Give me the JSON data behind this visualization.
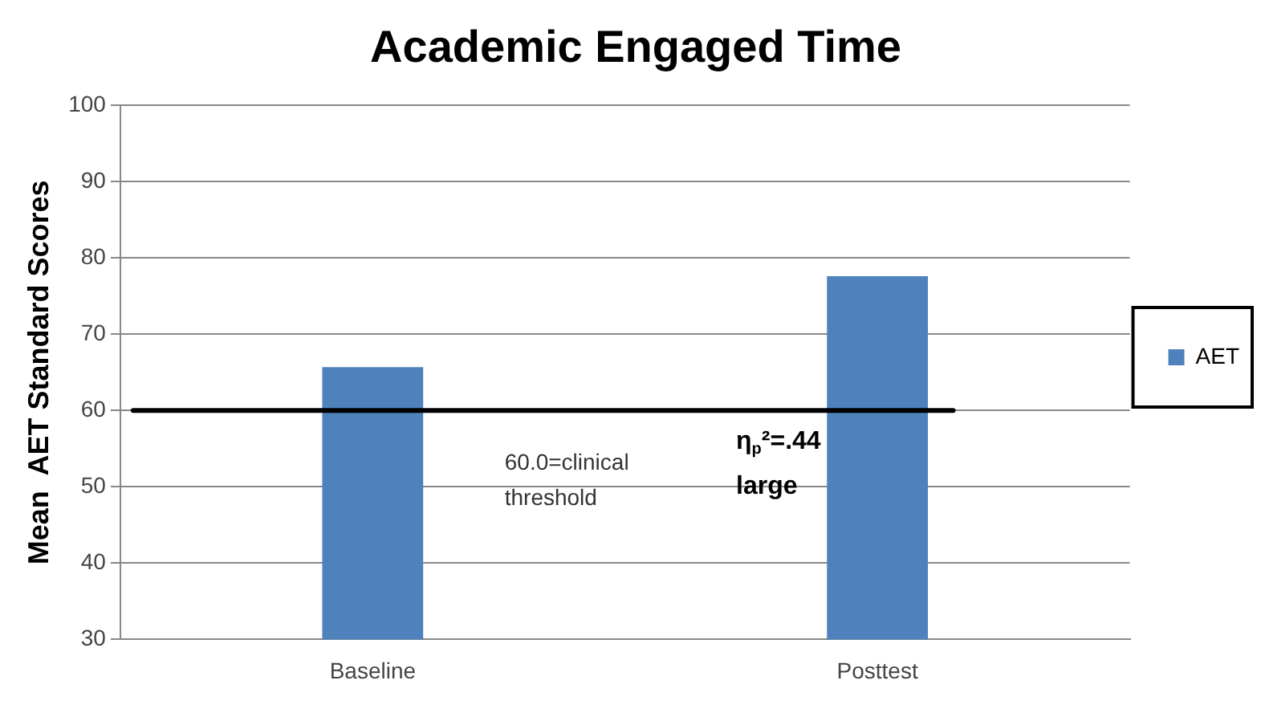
{
  "chart_data": {
    "type": "bar",
    "title": "Academic Engaged Time",
    "ylabel": "Mean  AET Standard Scores",
    "categories": [
      "Baseline",
      "Posttest"
    ],
    "series": [
      {
        "name": "AET",
        "color": "#4f81bd",
        "values": [
          65.7,
          77.6
        ]
      }
    ],
    "ylim": [
      30,
      100
    ],
    "yticks": [
      30,
      40,
      50,
      60,
      70,
      80,
      90,
      100
    ],
    "grid": "y",
    "legend": "right",
    "ref_lines": [
      {
        "axis": "y",
        "value": 60,
        "label": "60.0=clinical threshold",
        "color": "#000000"
      }
    ],
    "annotations": [
      "η$_{p}$²=.44 large"
    ]
  }
}
